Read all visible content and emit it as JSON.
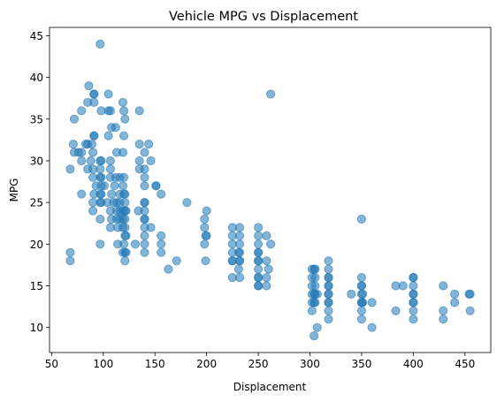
{
  "chart_data": {
    "type": "scatter",
    "title": "Vehicle MPG vs Displacement",
    "xlabel": "Displacement",
    "ylabel": "MPG",
    "xlim": [
      48,
      475
    ],
    "ylim": [
      7,
      46
    ],
    "xticks": [
      50,
      100,
      150,
      200,
      250,
      300,
      350,
      400,
      450
    ],
    "yticks": [
      10,
      15,
      20,
      25,
      30,
      35,
      40,
      45
    ],
    "grid": false,
    "legend": "none",
    "marker_color": "#1f77b4",
    "marker_alpha": 0.55,
    "points": [
      {
        "x": 97,
        "y": 44
      },
      {
        "x": 86,
        "y": 39
      },
      {
        "x": 91,
        "y": 38
      },
      {
        "x": 91,
        "y": 38
      },
      {
        "x": 105,
        "y": 38
      },
      {
        "x": 262,
        "y": 38
      },
      {
        "x": 85,
        "y": 37
      },
      {
        "x": 91,
        "y": 37
      },
      {
        "x": 119,
        "y": 37
      },
      {
        "x": 79,
        "y": 36
      },
      {
        "x": 98,
        "y": 36
      },
      {
        "x": 105,
        "y": 36
      },
      {
        "x": 107,
        "y": 36
      },
      {
        "x": 120,
        "y": 36
      },
      {
        "x": 135,
        "y": 36
      },
      {
        "x": 72,
        "y": 35
      },
      {
        "x": 121,
        "y": 35
      },
      {
        "x": 108,
        "y": 34
      },
      {
        "x": 112,
        "y": 34
      },
      {
        "x": 91,
        "y": 33
      },
      {
        "x": 91,
        "y": 33
      },
      {
        "x": 105,
        "y": 33
      },
      {
        "x": 120,
        "y": 33
      },
      {
        "x": 71,
        "y": 32
      },
      {
        "x": 83,
        "y": 32
      },
      {
        "x": 85,
        "y": 32
      },
      {
        "x": 89,
        "y": 32
      },
      {
        "x": 135,
        "y": 32
      },
      {
        "x": 144,
        "y": 32
      },
      {
        "x": 72,
        "y": 31
      },
      {
        "x": 76,
        "y": 31
      },
      {
        "x": 79,
        "y": 31
      },
      {
        "x": 90,
        "y": 31
      },
      {
        "x": 113,
        "y": 31
      },
      {
        "x": 119,
        "y": 31
      },
      {
        "x": 140,
        "y": 31
      },
      {
        "x": 68,
        "y": 29
      },
      {
        "x": 85,
        "y": 29
      },
      {
        "x": 90,
        "y": 29
      },
      {
        "x": 97,
        "y": 29
      },
      {
        "x": 107,
        "y": 29
      },
      {
        "x": 140,
        "y": 29
      },
      {
        "x": 135,
        "y": 29
      },
      {
        "x": 79,
        "y": 30
      },
      {
        "x": 88,
        "y": 30
      },
      {
        "x": 97,
        "y": 30
      },
      {
        "x": 98,
        "y": 30
      },
      {
        "x": 107,
        "y": 30
      },
      {
        "x": 135,
        "y": 30
      },
      {
        "x": 146,
        "y": 30
      },
      {
        "x": 90,
        "y": 28
      },
      {
        "x": 97,
        "y": 28
      },
      {
        "x": 98,
        "y": 28
      },
      {
        "x": 107,
        "y": 28
      },
      {
        "x": 112,
        "y": 28
      },
      {
        "x": 116,
        "y": 28
      },
      {
        "x": 120,
        "y": 28
      },
      {
        "x": 140,
        "y": 28
      },
      {
        "x": 93,
        "y": 27
      },
      {
        "x": 98,
        "y": 27
      },
      {
        "x": 101,
        "y": 27
      },
      {
        "x": 111,
        "y": 27
      },
      {
        "x": 119,
        "y": 27
      },
      {
        "x": 140,
        "y": 27
      },
      {
        "x": 151,
        "y": 27
      },
      {
        "x": 151,
        "y": 27
      },
      {
        "x": 79,
        "y": 26
      },
      {
        "x": 91,
        "y": 26
      },
      {
        "x": 97,
        "y": 26
      },
      {
        "x": 98,
        "y": 26
      },
      {
        "x": 108,
        "y": 26
      },
      {
        "x": 116,
        "y": 26
      },
      {
        "x": 120,
        "y": 26
      },
      {
        "x": 121,
        "y": 26
      },
      {
        "x": 156,
        "y": 26
      },
      {
        "x": 90,
        "y": 25
      },
      {
        "x": 97,
        "y": 25
      },
      {
        "x": 98,
        "y": 25
      },
      {
        "x": 104,
        "y": 25
      },
      {
        "x": 110,
        "y": 25
      },
      {
        "x": 113,
        "y": 25
      },
      {
        "x": 116,
        "y": 25
      },
      {
        "x": 121,
        "y": 25
      },
      {
        "x": 140,
        "y": 25
      },
      {
        "x": 140,
        "y": 25
      },
      {
        "x": 181,
        "y": 25
      },
      {
        "x": 90,
        "y": 24
      },
      {
        "x": 107,
        "y": 24
      },
      {
        "x": 113,
        "y": 24
      },
      {
        "x": 116,
        "y": 24
      },
      {
        "x": 119,
        "y": 24
      },
      {
        "x": 121,
        "y": 24
      },
      {
        "x": 122,
        "y": 24
      },
      {
        "x": 134,
        "y": 24
      },
      {
        "x": 140,
        "y": 24
      },
      {
        "x": 200,
        "y": 24
      },
      {
        "x": 97,
        "y": 23
      },
      {
        "x": 108,
        "y": 23
      },
      {
        "x": 113,
        "y": 23
      },
      {
        "x": 116,
        "y": 23
      },
      {
        "x": 119,
        "y": 23
      },
      {
        "x": 121,
        "y": 23
      },
      {
        "x": 140,
        "y": 23
      },
      {
        "x": 140,
        "y": 23
      },
      {
        "x": 198,
        "y": 23
      },
      {
        "x": 350,
        "y": 23
      },
      {
        "x": 107,
        "y": 22
      },
      {
        "x": 114,
        "y": 22
      },
      {
        "x": 119,
        "y": 22
      },
      {
        "x": 121,
        "y": 22
      },
      {
        "x": 140,
        "y": 22
      },
      {
        "x": 146,
        "y": 22
      },
      {
        "x": 198,
        "y": 22
      },
      {
        "x": 225,
        "y": 22
      },
      {
        "x": 232,
        "y": 22
      },
      {
        "x": 250,
        "y": 22
      },
      {
        "x": 121,
        "y": 21
      },
      {
        "x": 122,
        "y": 21
      },
      {
        "x": 140,
        "y": 21
      },
      {
        "x": 156,
        "y": 21
      },
      {
        "x": 199,
        "y": 21
      },
      {
        "x": 200,
        "y": 21
      },
      {
        "x": 225,
        "y": 21
      },
      {
        "x": 232,
        "y": 21
      },
      {
        "x": 250,
        "y": 21
      },
      {
        "x": 258,
        "y": 21
      },
      {
        "x": 97,
        "y": 20
      },
      {
        "x": 114,
        "y": 20
      },
      {
        "x": 120,
        "y": 20
      },
      {
        "x": 131,
        "y": 20
      },
      {
        "x": 140,
        "y": 20
      },
      {
        "x": 156,
        "y": 20
      },
      {
        "x": 198,
        "y": 20
      },
      {
        "x": 225,
        "y": 20
      },
      {
        "x": 232,
        "y": 20
      },
      {
        "x": 250,
        "y": 20
      },
      {
        "x": 262,
        "y": 20
      },
      {
        "x": 68,
        "y": 19
      },
      {
        "x": 119,
        "y": 19
      },
      {
        "x": 121,
        "y": 19
      },
      {
        "x": 122,
        "y": 19
      },
      {
        "x": 140,
        "y": 19
      },
      {
        "x": 156,
        "y": 19
      },
      {
        "x": 225,
        "y": 19
      },
      {
        "x": 232,
        "y": 19
      },
      {
        "x": 231,
        "y": 19
      },
      {
        "x": 250,
        "y": 19
      },
      {
        "x": 250,
        "y": 19
      },
      {
        "x": 68,
        "y": 18
      },
      {
        "x": 121,
        "y": 18
      },
      {
        "x": 171,
        "y": 18
      },
      {
        "x": 199,
        "y": 18
      },
      {
        "x": 225,
        "y": 18
      },
      {
        "x": 225,
        "y": 18
      },
      {
        "x": 232,
        "y": 18
      },
      {
        "x": 232,
        "y": 18
      },
      {
        "x": 250,
        "y": 18
      },
      {
        "x": 250,
        "y": 18
      },
      {
        "x": 258,
        "y": 18
      },
      {
        "x": 318,
        "y": 18
      },
      {
        "x": 163,
        "y": 17
      },
      {
        "x": 231,
        "y": 17
      },
      {
        "x": 250,
        "y": 17
      },
      {
        "x": 260,
        "y": 17
      },
      {
        "x": 302,
        "y": 17
      },
      {
        "x": 304,
        "y": 17
      },
      {
        "x": 305,
        "y": 17
      },
      {
        "x": 318,
        "y": 17
      },
      {
        "x": 225,
        "y": 16
      },
      {
        "x": 232,
        "y": 16
      },
      {
        "x": 250,
        "y": 16
      },
      {
        "x": 250,
        "y": 16
      },
      {
        "x": 258,
        "y": 16
      },
      {
        "x": 302,
        "y": 16
      },
      {
        "x": 305,
        "y": 16
      },
      {
        "x": 318,
        "y": 16
      },
      {
        "x": 318,
        "y": 16
      },
      {
        "x": 350,
        "y": 16
      },
      {
        "x": 400,
        "y": 16
      },
      {
        "x": 400,
        "y": 16
      },
      {
        "x": 250,
        "y": 15
      },
      {
        "x": 250,
        "y": 15
      },
      {
        "x": 258,
        "y": 15
      },
      {
        "x": 302,
        "y": 15
      },
      {
        "x": 305,
        "y": 15
      },
      {
        "x": 318,
        "y": 15
      },
      {
        "x": 318,
        "y": 15
      },
      {
        "x": 350,
        "y": 15
      },
      {
        "x": 350,
        "y": 15
      },
      {
        "x": 383,
        "y": 15
      },
      {
        "x": 390,
        "y": 15
      },
      {
        "x": 400,
        "y": 15
      },
      {
        "x": 429,
        "y": 15
      },
      {
        "x": 302,
        "y": 14
      },
      {
        "x": 304,
        "y": 14
      },
      {
        "x": 305,
        "y": 14
      },
      {
        "x": 307,
        "y": 14
      },
      {
        "x": 318,
        "y": 14
      },
      {
        "x": 318,
        "y": 14
      },
      {
        "x": 340,
        "y": 14
      },
      {
        "x": 350,
        "y": 14
      },
      {
        "x": 351,
        "y": 14
      },
      {
        "x": 400,
        "y": 14
      },
      {
        "x": 400,
        "y": 14
      },
      {
        "x": 440,
        "y": 14
      },
      {
        "x": 454,
        "y": 14
      },
      {
        "x": 455,
        "y": 14
      },
      {
        "x": 302,
        "y": 13
      },
      {
        "x": 304,
        "y": 13
      },
      {
        "x": 305,
        "y": 13
      },
      {
        "x": 318,
        "y": 13
      },
      {
        "x": 318,
        "y": 13
      },
      {
        "x": 350,
        "y": 13
      },
      {
        "x": 350,
        "y": 13
      },
      {
        "x": 351,
        "y": 13
      },
      {
        "x": 360,
        "y": 13
      },
      {
        "x": 400,
        "y": 13
      },
      {
        "x": 400,
        "y": 13
      },
      {
        "x": 440,
        "y": 13
      },
      {
        "x": 302,
        "y": 12
      },
      {
        "x": 318,
        "y": 12
      },
      {
        "x": 350,
        "y": 12
      },
      {
        "x": 383,
        "y": 12
      },
      {
        "x": 400,
        "y": 12
      },
      {
        "x": 429,
        "y": 12
      },
      {
        "x": 455,
        "y": 12
      },
      {
        "x": 318,
        "y": 11
      },
      {
        "x": 350,
        "y": 11
      },
      {
        "x": 400,
        "y": 11
      },
      {
        "x": 429,
        "y": 11
      },
      {
        "x": 307,
        "y": 10
      },
      {
        "x": 360,
        "y": 10
      },
      {
        "x": 304,
        "y": 9
      }
    ]
  }
}
